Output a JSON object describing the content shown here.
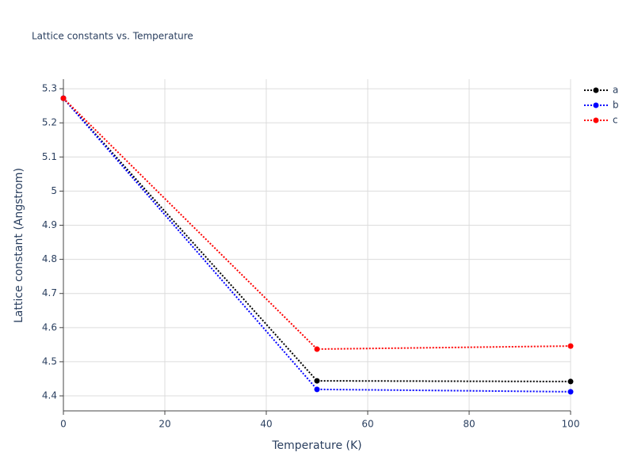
{
  "chart_data": {
    "type": "line",
    "title": "Lattice constants vs. Temperature",
    "x_label": "Temperature (K)",
    "y_label": "Lattice constant (Angstrom)",
    "x": [
      0,
      50,
      100
    ],
    "series": [
      {
        "name": "a",
        "color": "#000000",
        "values": [
          5.272,
          4.444,
          4.442
        ]
      },
      {
        "name": "b",
        "color": "#0000ff",
        "values": [
          5.272,
          4.419,
          4.412
        ]
      },
      {
        "name": "c",
        "color": "#ff0000",
        "values": [
          5.272,
          4.537,
          4.546
        ]
      }
    ],
    "xlim": [
      0,
      100
    ],
    "xticks": [
      0,
      20,
      40,
      60,
      80,
      100
    ],
    "ylim": [
      4.356,
      5.328
    ],
    "yticks": [
      4.4,
      4.5,
      4.6,
      4.7,
      4.8,
      4.9,
      5,
      5.1,
      5.2,
      5.3
    ],
    "grid": true,
    "legend": "top-right"
  }
}
